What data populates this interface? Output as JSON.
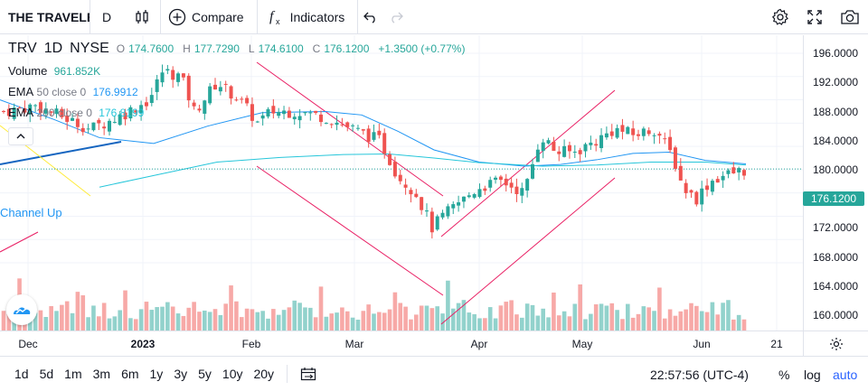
{
  "toolbar": {
    "symbol": "THE TRAVELERS COMPANIES, INC.",
    "interval": "D",
    "compare_label": "Compare",
    "indicators_label": "Indicators"
  },
  "legend": {
    "symbol": "TRV",
    "interval": "1D",
    "exchange": "NYSE",
    "open_label": "O",
    "open": "174.7600",
    "high_label": "H",
    "high": "177.7290",
    "low_label": "L",
    "low": "174.6100",
    "close_label": "C",
    "close": "176.1200",
    "change": "+1.3500 (+0.77%)",
    "volume_name": "Volume",
    "volume_value": "961.852K",
    "ema50_name": "EMA",
    "ema50_params": "50 close 0",
    "ema50_value": "176.9912",
    "ema200_name": "EMA",
    "ema200_params": "200 close 0",
    "ema200_value": "176.8199"
  },
  "drawing_label": "Channel Up",
  "price_axis": {
    "labels": [
      "196.0000",
      "192.0000",
      "188.0000",
      "184.0000",
      "180.0000",
      "172.0000",
      "168.0000",
      "164.0000",
      "160.0000"
    ],
    "current": "176.1200"
  },
  "time_axis": {
    "labels": [
      "Dec",
      "2023",
      "Feb",
      "Mar",
      "Apr",
      "May",
      "Jun",
      "21"
    ]
  },
  "bottombar": {
    "ranges": [
      "1d",
      "5d",
      "1m",
      "3m",
      "6m",
      "1y",
      "3y",
      "5y",
      "10y",
      "20y"
    ],
    "clock": "22:57:56 (UTC-4)",
    "percent": "%",
    "log": "log",
    "auto": "auto"
  },
  "colors": {
    "up": "#26a69a",
    "down": "#ef5350",
    "ema50": "#2196f3",
    "ema200": "#26c6da",
    "drawing": "#e91e63",
    "auto": "#2962ff"
  },
  "icons": [
    "bars-style-icon",
    "compare-plus-icon",
    "fx-indicators-icon",
    "undo-icon",
    "redo-icon",
    "settings-gear-icon",
    "fullscreen-icon",
    "camera-snapshot-icon",
    "chevron-up-icon",
    "date-range-icon",
    "axis-settings-icon",
    "tradingview-logo-icon"
  ]
}
